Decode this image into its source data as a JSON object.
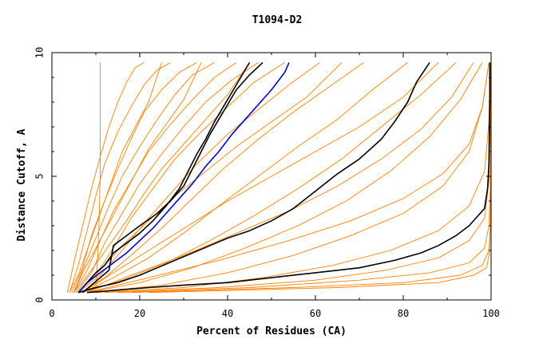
{
  "chart_data": {
    "type": "line",
    "title": "T1094-D2",
    "xlabel": "Percent of Residues (CA)",
    "ylabel": "Distance Cutoff, A",
    "xlim": [
      0,
      100
    ],
    "ylim": [
      0,
      10
    ],
    "x_ticks": [
      "0",
      "20",
      "40",
      "60",
      "80",
      "100"
    ],
    "y_ticks": [
      "0",
      "5",
      "10"
    ],
    "grid": false,
    "legend": "none",
    "colors": {
      "background_models": "#ff8000",
      "highlight_black": "#000000",
      "highlight_blue": "#0000cc",
      "axes": "#000000"
    },
    "background_models": [
      {
        "x": [
          3.5,
          5,
          7,
          9,
          11,
          13,
          15,
          17,
          19,
          21
        ],
        "y": [
          0.3,
          1.5,
          3,
          4.5,
          5.8,
          7,
          8,
          8.8,
          9.4,
          9.6
        ]
      },
      {
        "x": [
          4,
          6,
          8,
          10,
          12,
          15,
          18,
          21,
          24,
          27
        ],
        "y": [
          0.3,
          1.4,
          2.8,
          4.2,
          5.5,
          6.8,
          7.8,
          8.7,
          9.3,
          9.6
        ]
      },
      {
        "x": [
          4.5,
          7,
          9,
          12,
          15,
          18,
          21,
          25,
          29,
          33
        ],
        "y": [
          0.3,
          1.3,
          2.6,
          4,
          5.3,
          6.5,
          7.6,
          8.5,
          9.2,
          9.6
        ]
      },
      {
        "x": [
          5,
          7,
          10,
          13,
          16,
          20,
          24,
          28,
          32,
          37
        ],
        "y": [
          0.3,
          1.2,
          2.5,
          3.8,
          5,
          6.2,
          7.3,
          8.3,
          9.1,
          9.6
        ]
      },
      {
        "x": [
          5,
          8,
          11,
          14,
          18,
          22,
          27,
          32,
          37,
          42
        ],
        "y": [
          0.3,
          1.2,
          2.4,
          3.6,
          4.8,
          6,
          7.1,
          8.1,
          9,
          9.6
        ]
      },
      {
        "x": [
          5.5,
          9,
          12,
          16,
          20,
          25,
          30,
          35,
          41,
          47
        ],
        "y": [
          0.3,
          1.1,
          2.3,
          3.5,
          4.7,
          5.9,
          7,
          8,
          8.9,
          9.6
        ]
      },
      {
        "x": [
          6,
          10,
          14,
          18,
          23,
          28,
          34,
          40,
          46,
          53
        ],
        "y": [
          0.3,
          1,
          2.1,
          3.3,
          4.5,
          5.7,
          6.8,
          7.8,
          8.8,
          9.6
        ]
      },
      {
        "x": [
          6,
          11,
          16,
          21,
          27,
          33,
          40,
          47,
          54,
          61
        ],
        "y": [
          0.3,
          1,
          2,
          3.1,
          4.3,
          5.5,
          6.7,
          7.7,
          8.7,
          9.6
        ]
      },
      {
        "x": [
          6.5,
          12,
          18,
          25,
          32,
          39,
          47,
          55,
          63,
          71
        ],
        "y": [
          0.3,
          0.9,
          1.8,
          2.9,
          4.1,
          5.3,
          6.5,
          7.6,
          8.6,
          9.6
        ]
      },
      {
        "x": [
          7,
          14,
          22,
          30,
          38,
          47,
          56,
          65,
          73,
          81
        ],
        "y": [
          0.3,
          0.9,
          1.7,
          2.7,
          3.8,
          5,
          6.2,
          7.3,
          8.5,
          9.6
        ]
      },
      {
        "x": [
          7,
          16,
          26,
          36,
          46,
          56,
          66,
          75,
          84,
          92
        ],
        "y": [
          0.3,
          0.8,
          1.5,
          2.4,
          3.4,
          4.5,
          5.7,
          7,
          8.3,
          9.6
        ]
      },
      {
        "x": [
          8,
          20,
          32,
          44,
          56,
          67,
          77,
          86,
          93,
          98
        ],
        "y": [
          0.3,
          0.7,
          1.3,
          2.1,
          3,
          4,
          5.2,
          6.6,
          8.1,
          9.6
        ]
      },
      {
        "x": [
          9,
          25,
          40,
          55,
          68,
          80,
          89,
          95,
          98,
          99.5
        ],
        "y": [
          0.3,
          0.6,
          1.1,
          1.8,
          2.6,
          3.5,
          4.6,
          6,
          7.8,
          9.6
        ]
      },
      {
        "x": [
          10,
          30,
          48,
          64,
          77,
          88,
          95,
          98.5,
          99.5,
          99.8
        ],
        "y": [
          0.3,
          0.5,
          0.9,
          1.4,
          2,
          2.8,
          3.8,
          5.2,
          7.2,
          9.6
        ]
      },
      {
        "x": [
          12,
          38,
          60,
          76,
          88,
          95,
          98.5,
          99.5,
          99.8,
          99.9
        ],
        "y": [
          0.3,
          0.5,
          0.8,
          1.2,
          1.7,
          2.4,
          3.3,
          4.8,
          7,
          9.6
        ]
      },
      {
        "x": [
          15,
          45,
          70,
          86,
          95,
          98.5,
          99.5,
          99.8,
          99.9,
          99.9
        ],
        "y": [
          0.3,
          0.5,
          0.8,
          1.1,
          1.5,
          2.1,
          3,
          4.4,
          6.8,
          9.6
        ]
      },
      {
        "x": [
          18,
          55,
          80,
          93,
          98,
          99.5,
          99.8,
          99.9,
          99.9,
          99.9
        ],
        "y": [
          0.3,
          0.5,
          0.7,
          1,
          1.4,
          2,
          2.9,
          4.2,
          6.6,
          9.6
        ]
      },
      {
        "x": [
          22,
          65,
          88,
          96,
          99,
          99.6,
          99.8,
          99.9,
          99.9,
          99.9
        ],
        "y": [
          0.3,
          0.5,
          0.7,
          1,
          1.3,
          1.9,
          2.8,
          4,
          6.4,
          9.6
        ]
      },
      {
        "x": [
          4,
          6,
          8,
          10,
          12,
          14,
          16,
          19,
          22,
          25
        ],
        "y": [
          0.3,
          1,
          2,
          3,
          4,
          5,
          6,
          7,
          8,
          9.6
        ]
      },
      {
        "x": [
          5,
          7,
          10,
          13,
          16,
          19,
          22,
          26,
          30,
          34
        ],
        "y": [
          0.3,
          1.1,
          2.1,
          3.1,
          4.1,
          5.1,
          6.1,
          7.1,
          8.1,
          9.6
        ]
      },
      {
        "x": [
          5,
          9,
          13,
          17,
          21,
          25,
          30,
          35,
          40,
          45
        ],
        "y": [
          0.3,
          1.2,
          2.2,
          3.2,
          4.3,
          5.3,
          6.3,
          7.3,
          8.3,
          9.6
        ]
      },
      {
        "x": [
          6,
          11,
          16,
          22,
          28,
          35,
          42,
          50,
          58,
          66
        ],
        "y": [
          0.3,
          1.2,
          2.2,
          3.2,
          4.2,
          5.2,
          6.2,
          7.2,
          8.2,
          9.6
        ]
      },
      {
        "x": [
          7,
          14,
          22,
          31,
          40,
          50,
          60,
          70,
          80,
          88
        ],
        "y": [
          0.3,
          1.1,
          2,
          3,
          4,
          5,
          6,
          7,
          8.2,
          9.6
        ]
      },
      {
        "x": [
          8,
          18,
          30,
          42,
          54,
          65,
          75,
          84,
          91,
          96
        ],
        "y": [
          0.3,
          1,
          1.8,
          2.7,
          3.6,
          4.6,
          5.7,
          6.9,
          8.2,
          9.6
        ]
      },
      {
        "x": [
          8,
          22,
          38,
          54,
          68,
          80,
          89,
          95,
          98,
          99.5
        ],
        "y": [
          0.3,
          0.9,
          1.6,
          2.4,
          3.2,
          4.1,
          5.1,
          6.3,
          7.8,
          9.6
        ]
      },
      {
        "x": [
          10,
          10.5,
          10.8,
          11,
          11,
          11,
          11,
          11,
          11,
          11
        ],
        "y": [
          0.5,
          2,
          3.5,
          5,
          6,
          7,
          8,
          8.5,
          9,
          9.6
        ]
      }
    ],
    "highlight_series": [
      {
        "color": "black",
        "x": [
          6,
          8,
          10,
          12,
          14,
          17,
          20,
          23,
          26,
          29,
          31,
          33,
          35,
          37,
          39,
          41,
          43,
          45
        ],
        "y": [
          0.3,
          0.7,
          1.1,
          1.4,
          1.9,
          2.3,
          2.7,
          3.2,
          3.8,
          4.5,
          5.2,
          5.9,
          6.5,
          7.2,
          7.8,
          8.4,
          9,
          9.6
        ]
      },
      {
        "color": "black",
        "x": [
          7,
          9,
          11,
          13,
          14,
          17,
          20,
          24,
          27,
          30,
          32,
          34,
          36,
          38,
          40,
          42,
          45,
          48
        ],
        "y": [
          0.3,
          0.6,
          0.9,
          1.2,
          2.2,
          2.6,
          3,
          3.5,
          4,
          4.6,
          5.3,
          6,
          6.7,
          7.3,
          7.9,
          8.5,
          9.1,
          9.6
        ]
      },
      {
        "color": "black",
        "x": [
          6,
          10,
          15,
          20,
          24,
          28,
          32,
          36,
          40,
          45,
          50,
          55,
          60,
          65,
          70,
          75,
          78,
          81,
          83,
          86
        ],
        "y": [
          0.3,
          0.5,
          0.7,
          1,
          1.3,
          1.6,
          1.9,
          2.2,
          2.5,
          2.8,
          3.2,
          3.7,
          4.4,
          5.1,
          5.7,
          6.5,
          7.2,
          8,
          8.8,
          9.6
        ]
      },
      {
        "color": "black",
        "x": [
          8,
          15,
          22,
          30,
          40,
          50,
          60,
          70,
          78,
          84,
          88,
          92,
          95,
          97,
          98.5,
          99.2,
          99.5,
          99.6,
          99.7,
          99.7
        ],
        "y": [
          0.3,
          0.4,
          0.5,
          0.6,
          0.7,
          0.9,
          1.1,
          1.3,
          1.6,
          1.9,
          2.2,
          2.6,
          3,
          3.4,
          3.7,
          4.5,
          5.5,
          6.8,
          8.2,
          9.6
        ]
      },
      {
        "color": "blue",
        "x": [
          6,
          8,
          11,
          14,
          17,
          20,
          23,
          26,
          29,
          32,
          35,
          38,
          41,
          44,
          47,
          50,
          53,
          54
        ],
        "y": [
          0.3,
          0.7,
          1.1,
          1.5,
          1.9,
          2.4,
          2.9,
          3.5,
          4.1,
          4.7,
          5.4,
          6,
          6.7,
          7.3,
          7.9,
          8.5,
          9.2,
          9.6
        ]
      }
    ]
  }
}
